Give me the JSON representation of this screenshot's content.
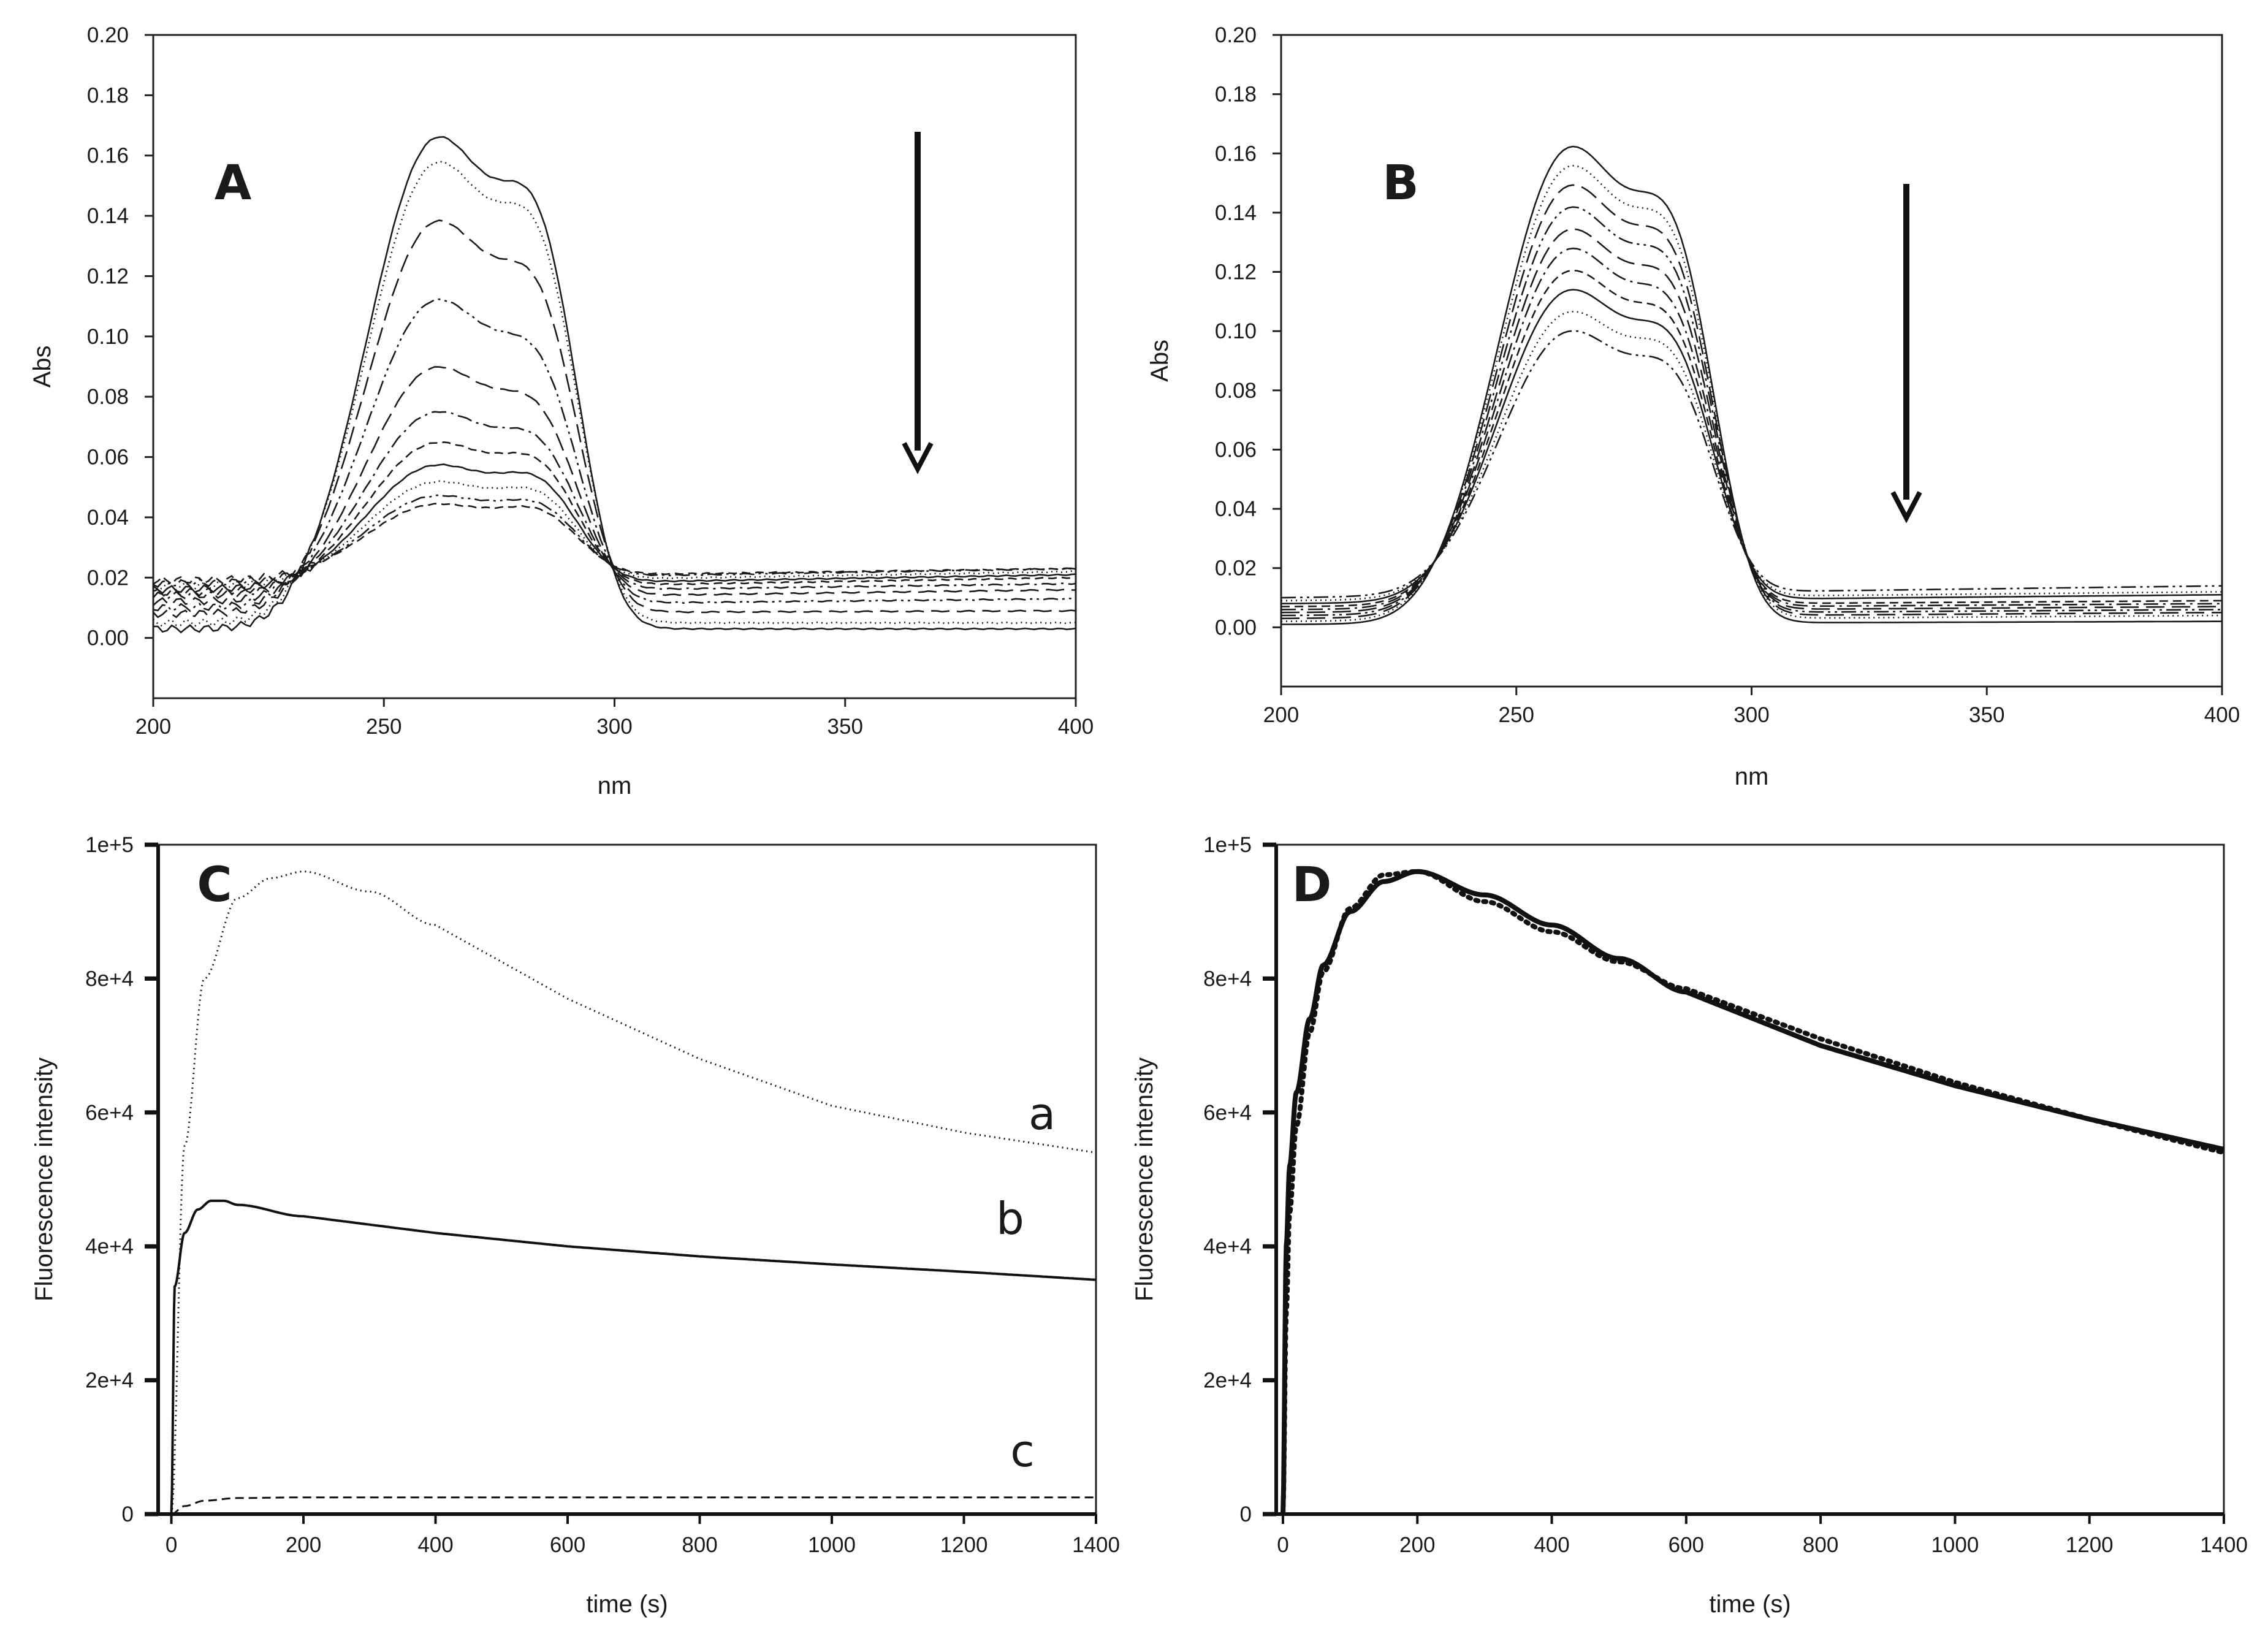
{
  "chart_data": [
    {
      "panel": "A",
      "type": "line",
      "title": "",
      "xlabel": "nm",
      "ylabel": "Abs",
      "xlim": [
        200,
        400
      ],
      "ylim": [
        -0.02,
        0.2
      ],
      "xticks": [
        "200",
        "250",
        "300",
        "350",
        "400"
      ],
      "yticks": [
        "0.00",
        "0.02",
        "0.04",
        "0.06",
        "0.08",
        "0.10",
        "0.12",
        "0.14",
        "0.16",
        "0.18",
        "0.20"
      ],
      "arrow": "downward",
      "series_style": [
        "solid",
        "dotted",
        "dashed-long",
        "dash-dot-dot",
        "dashed-long",
        "dash-dot",
        "dashed",
        "solid",
        "dotted",
        "dash-dot-dot",
        "dashed"
      ],
      "spectra": [
        {
          "peak": 0.177,
          "shoulder": 0.15,
          "left": 0.003,
          "right": 0.003
        },
        {
          "peak": 0.168,
          "shoulder": 0.143,
          "left": 0.005,
          "right": 0.005
        },
        {
          "peak": 0.147,
          "shoulder": 0.122,
          "left": 0.008,
          "right": 0.009
        },
        {
          "peak": 0.119,
          "shoulder": 0.097,
          "left": 0.01,
          "right": 0.013
        },
        {
          "peak": 0.095,
          "shoulder": 0.08,
          "left": 0.012,
          "right": 0.016
        },
        {
          "peak": 0.079,
          "shoulder": 0.069,
          "left": 0.014,
          "right": 0.018
        },
        {
          "peak": 0.068,
          "shoulder": 0.062,
          "left": 0.015,
          "right": 0.02
        },
        {
          "peak": 0.06,
          "shoulder": 0.056,
          "left": 0.016,
          "right": 0.021
        },
        {
          "peak": 0.054,
          "shoulder": 0.051,
          "left": 0.017,
          "right": 0.022
        },
        {
          "peak": 0.049,
          "shoulder": 0.047,
          "left": 0.018,
          "right": 0.023
        },
        {
          "peak": 0.046,
          "shoulder": 0.045,
          "left": 0.019,
          "right": 0.023
        }
      ]
    },
    {
      "panel": "B",
      "type": "line",
      "title": "",
      "xlabel": "nm",
      "ylabel": "Abs",
      "xlim": [
        200,
        400
      ],
      "ylim": [
        -0.02,
        0.2
      ],
      "xticks": [
        "200",
        "250",
        "300",
        "350",
        "400"
      ],
      "yticks": [
        "0.00",
        "0.02",
        "0.04",
        "0.06",
        "0.08",
        "0.10",
        "0.12",
        "0.14",
        "0.16",
        "0.18",
        "0.20"
      ],
      "arrow": "downward",
      "series_style": [
        "solid",
        "dotted",
        "dashed-long",
        "dash-dot-dot",
        "dashed-long",
        "dash-dot",
        "dashed",
        "solid",
        "dotted",
        "dash-dot-dot"
      ],
      "spectra": [
        {
          "peak": 0.173,
          "shoulder": 0.144,
          "left": 0.001,
          "right": 0.002
        },
        {
          "peak": 0.166,
          "shoulder": 0.139,
          "left": 0.002,
          "right": 0.004
        },
        {
          "peak": 0.159,
          "shoulder": 0.133,
          "left": 0.003,
          "right": 0.005
        },
        {
          "peak": 0.151,
          "shoulder": 0.127,
          "left": 0.004,
          "right": 0.006
        },
        {
          "peak": 0.143,
          "shoulder": 0.12,
          "left": 0.005,
          "right": 0.007
        },
        {
          "peak": 0.136,
          "shoulder": 0.113,
          "left": 0.006,
          "right": 0.008
        },
        {
          "peak": 0.128,
          "shoulder": 0.107,
          "left": 0.007,
          "right": 0.009
        },
        {
          "peak": 0.121,
          "shoulder": 0.101,
          "left": 0.008,
          "right": 0.011
        },
        {
          "peak": 0.113,
          "shoulder": 0.096,
          "left": 0.009,
          "right": 0.012
        },
        {
          "peak": 0.106,
          "shoulder": 0.09,
          "left": 0.01,
          "right": 0.014
        }
      ]
    },
    {
      "panel": "C",
      "type": "line",
      "title": "",
      "xlabel": "time (s)",
      "ylabel": "Fluorescence intensity",
      "xlim": [
        -20,
        1400
      ],
      "ylim": [
        0,
        100000
      ],
      "xticks": [
        "0",
        "200",
        "400",
        "600",
        "800",
        "1000",
        "1200",
        "1400"
      ],
      "yticks": [
        "0",
        "2e+4",
        "4e+4",
        "6e+4",
        "8e+4",
        "1e+5"
      ],
      "series": [
        {
          "name": "a",
          "style": "dotted",
          "x": [
            0,
            20,
            50,
            100,
            150,
            200,
            300,
            400,
            600,
            800,
            1000,
            1200,
            1400
          ],
          "y": [
            0,
            55000,
            80000,
            92000,
            95000,
            96000,
            93000,
            88000,
            77000,
            68000,
            61000,
            57000,
            54000
          ]
        },
        {
          "name": "b",
          "style": "solid",
          "x": [
            0,
            5,
            20,
            40,
            60,
            80,
            100,
            200,
            400,
            600,
            800,
            1000,
            1200,
            1400
          ],
          "y": [
            0,
            34000,
            42000,
            45500,
            46800,
            46800,
            46200,
            44500,
            42000,
            40000,
            38500,
            37300,
            36200,
            35000
          ]
        },
        {
          "name": "c",
          "style": "dashed",
          "x": [
            0,
            20,
            50,
            100,
            200,
            400,
            1400
          ],
          "y": [
            0,
            1200,
            2000,
            2400,
            2500,
            2500,
            2500
          ]
        }
      ]
    },
    {
      "panel": "D",
      "type": "line",
      "title": "",
      "xlabel": "time (s)",
      "ylabel": "Fluorescence intensity",
      "xlim": [
        -10,
        1400
      ],
      "ylim": [
        0,
        100000
      ],
      "xticks": [
        "0",
        "200",
        "400",
        "600",
        "800",
        "1000",
        "1200",
        "1400"
      ],
      "yticks": [
        "0",
        "2e+4",
        "4e+4",
        "6e+4",
        "8e+4",
        "1e+5"
      ],
      "series": [
        {
          "style": "solid-thick",
          "x": [
            0,
            5,
            10,
            20,
            40,
            60,
            100,
            150,
            200,
            300,
            400,
            500,
            600,
            800,
            1000,
            1200,
            1400
          ],
          "y": [
            0,
            40000,
            52000,
            63000,
            74000,
            82000,
            90000,
            94500,
            96000,
            92500,
            88000,
            83000,
            78000,
            70000,
            64000,
            59000,
            54500
          ]
        },
        {
          "style": "dotted-thick",
          "x": [
            0,
            5,
            10,
            20,
            40,
            60,
            100,
            150,
            200,
            300,
            400,
            500,
            600,
            800,
            1000,
            1200,
            1400
          ],
          "y": [
            0,
            30000,
            45000,
            58000,
            72000,
            81000,
            90500,
            95500,
            96000,
            91500,
            87000,
            82500,
            78500,
            71000,
            64500,
            59000,
            54000
          ]
        }
      ]
    }
  ],
  "labels": {
    "panel_a": "A",
    "panel_b": "B",
    "panel_c": "C",
    "panel_d": "D",
    "curve_a": "a",
    "curve_b": "b",
    "curve_c": "c"
  }
}
